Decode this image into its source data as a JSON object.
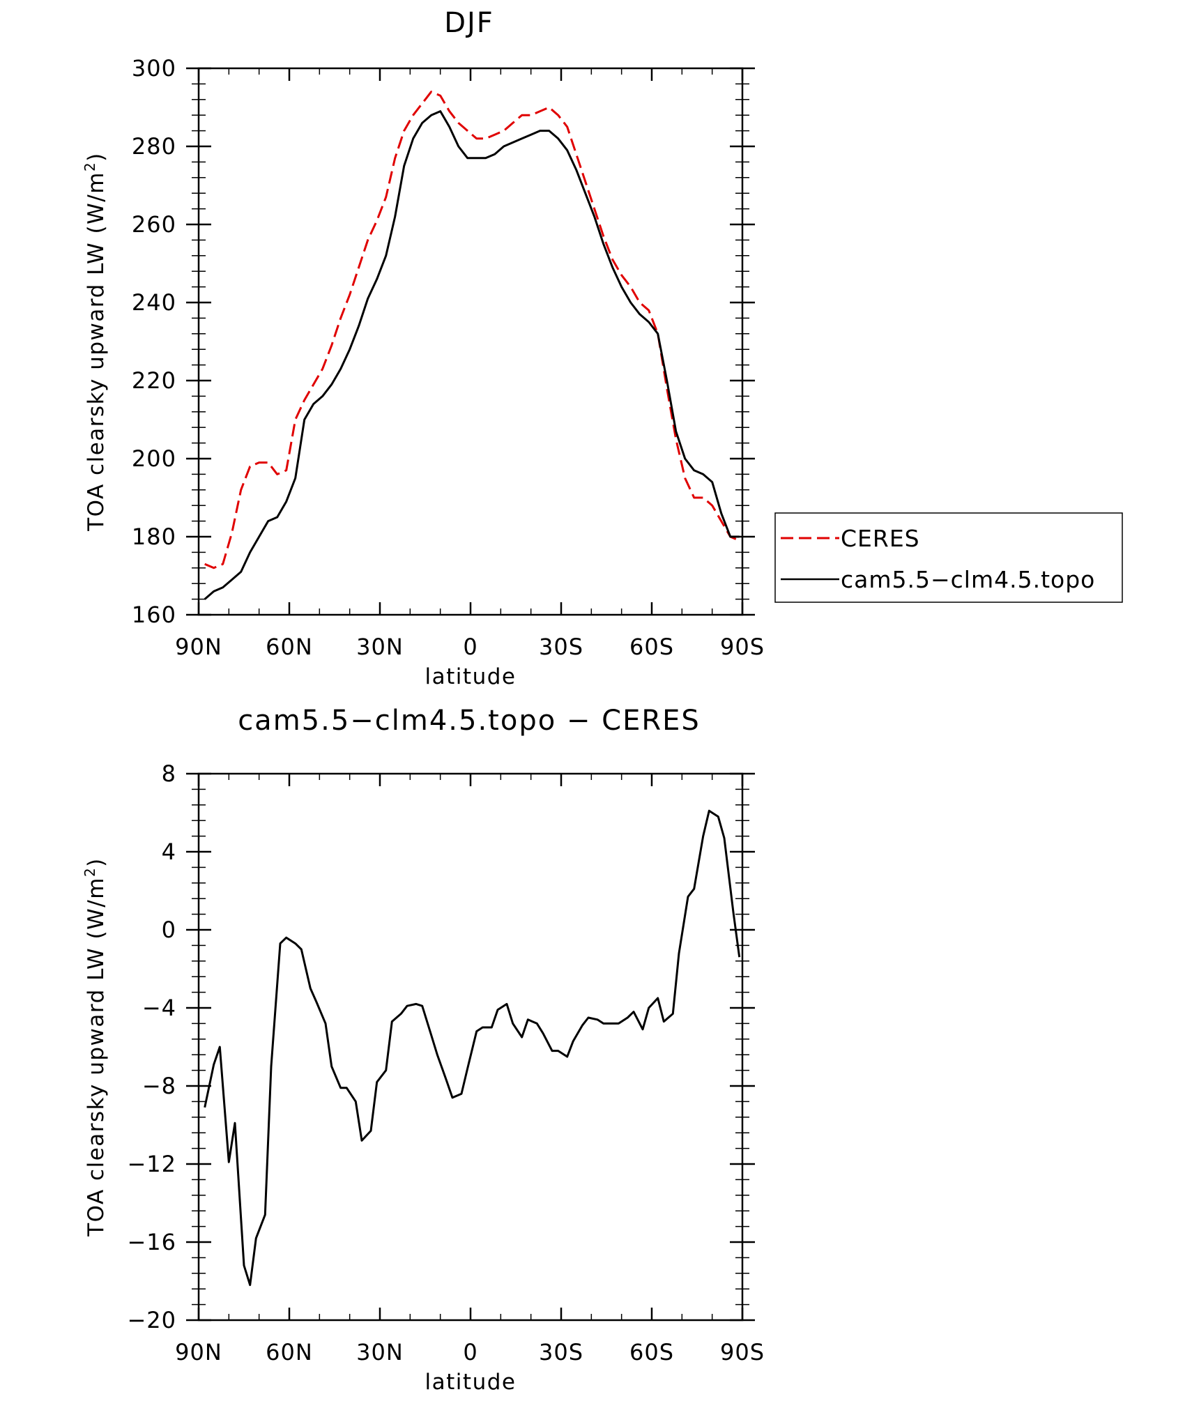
{
  "chart_data": [
    {
      "type": "line",
      "title": "DJF",
      "xlabel": "latitude",
      "ylabel": "TOA clearsky upward LW (W/m²)",
      "ylabel_text": "TOA clearsky upward LW (W/m",
      "ylabel_sup": "2",
      "ylabel_end": ")",
      "xlim": [
        90,
        -90
      ],
      "ylim": [
        160,
        300
      ],
      "x_ticks": [
        90,
        60,
        30,
        0,
        -30,
        -60,
        -90
      ],
      "x_tick_labels": [
        "90N",
        "60N",
        "30N",
        "0",
        "30S",
        "60S",
        "90S"
      ],
      "y_ticks": [
        160,
        180,
        200,
        220,
        240,
        260,
        280,
        300
      ],
      "y_tick_labels": [
        "160",
        "180",
        "200",
        "220",
        "240",
        "260",
        "280",
        "300"
      ],
      "legend_position": "right",
      "series": [
        {
          "name": "CERES",
          "color": "#e00000",
          "style": "dashed",
          "x": [
            88,
            85,
            82,
            79,
            76,
            73,
            70,
            67,
            64,
            61,
            58,
            55,
            52,
            49,
            46,
            43,
            40,
            37,
            34,
            31,
            28,
            25,
            22,
            19,
            16,
            13,
            10,
            7,
            4,
            1,
            -2,
            -5,
            -8,
            -11,
            -14,
            -17,
            -20,
            -23,
            -26,
            -29,
            -32,
            -35,
            -38,
            -41,
            -44,
            -47,
            -50,
            -53,
            -56,
            -59,
            -62,
            -65,
            -68,
            -71,
            -74,
            -77,
            -80,
            -83,
            -86,
            -89
          ],
          "y": [
            173,
            172,
            173,
            181,
            192,
            198,
            199,
            199,
            196,
            197,
            210,
            215,
            219,
            223,
            229,
            236,
            242,
            249,
            256,
            261,
            267,
            277,
            284,
            288,
            291,
            294,
            293,
            289,
            286,
            284,
            282,
            282,
            283,
            284,
            286,
            288,
            288,
            289,
            290,
            288,
            285,
            278,
            271,
            264,
            257,
            251,
            247,
            244,
            240,
            238,
            232,
            218,
            205,
            195,
            190,
            190,
            188,
            184,
            180,
            179
          ]
        },
        {
          "name": "cam5.5−clm4.5.topo",
          "color": "#000000",
          "style": "solid",
          "x": [
            88,
            85,
            82,
            79,
            76,
            73,
            70,
            67,
            64,
            61,
            58,
            55,
            52,
            49,
            46,
            43,
            40,
            37,
            34,
            31,
            28,
            25,
            22,
            19,
            16,
            13,
            10,
            7,
            4,
            1,
            -2,
            -5,
            -8,
            -11,
            -14,
            -17,
            -20,
            -23,
            -26,
            -29,
            -32,
            -35,
            -38,
            -41,
            -44,
            -47,
            -50,
            -53,
            -56,
            -59,
            -62,
            -65,
            -68,
            -71,
            -74,
            -77,
            -80,
            -83,
            -86,
            -89
          ],
          "y": [
            164,
            166,
            167,
            169,
            171,
            176,
            180,
            184,
            185,
            189,
            195,
            210,
            214,
            216,
            219,
            223,
            228,
            234,
            241,
            246,
            252,
            262,
            275,
            282,
            286,
            288,
            289,
            285,
            280,
            277,
            277,
            277,
            278,
            280,
            281,
            282,
            283,
            284,
            284,
            282,
            279,
            274,
            268,
            262,
            255,
            249,
            244,
            240,
            237,
            235,
            232,
            220,
            207,
            200,
            197,
            196,
            194,
            186,
            180,
            180
          ]
        }
      ]
    },
    {
      "type": "line",
      "title": "cam5.5−clm4.5.topo − CERES",
      "xlabel": "latitude",
      "ylabel": "TOA clearsky upward LW (W/m²)",
      "ylabel_text": "TOA clearsky upward LW (W/m",
      "ylabel_sup": "2",
      "ylabel_end": ")",
      "xlim": [
        90,
        -90
      ],
      "ylim": [
        -20,
        8
      ],
      "x_ticks": [
        90,
        60,
        30,
        0,
        -30,
        -60,
        -90
      ],
      "x_tick_labels": [
        "90N",
        "60N",
        "30N",
        "0",
        "30S",
        "60S",
        "90S"
      ],
      "y_ticks": [
        -20,
        -16,
        -12,
        -8,
        -4,
        0,
        4,
        8
      ],
      "y_tick_labels": [
        "−20",
        "−16",
        "−12",
        "−8",
        "−4",
        "0",
        "4",
        "8"
      ],
      "series": [
        {
          "color": "#000000",
          "style": "solid",
          "x": [
            88,
            85,
            83,
            80,
            78,
            75,
            73,
            71,
            68,
            66,
            63,
            61,
            58,
            56,
            53,
            51,
            48,
            46,
            43,
            41,
            38,
            36,
            33,
            31,
            28,
            26,
            23,
            21,
            18,
            16,
            13,
            11,
            8,
            6,
            3,
            1,
            -2,
            -4,
            -7,
            -9,
            -12,
            -14,
            -17,
            -19,
            -22,
            -24,
            -27,
            -29,
            -32,
            -34,
            -37,
            -39,
            -42,
            -44,
            -47,
            -49,
            -52,
            -54,
            -57,
            -59,
            -62,
            -64,
            -67,
            -69,
            -72,
            -74,
            -77,
            -79,
            -82,
            -84,
            -87,
            -89
          ],
          "y": [
            -9.1,
            -6.9,
            -6.0,
            -11.9,
            -9.9,
            -17.2,
            -18.2,
            -15.8,
            -14.6,
            -7.0,
            -0.7,
            -0.4,
            -0.7,
            -1.0,
            -3.0,
            -3.7,
            -4.8,
            -7.0,
            -8.1,
            -8.1,
            -8.8,
            -10.8,
            -10.3,
            -7.8,
            -7.2,
            -4.7,
            -4.3,
            -3.9,
            -3.8,
            -3.9,
            -5.4,
            -6.4,
            -7.7,
            -8.6,
            -8.4,
            -7.1,
            -5.2,
            -5.0,
            -5.0,
            -4.1,
            -3.8,
            -4.8,
            -5.5,
            -4.6,
            -4.8,
            -5.3,
            -6.2,
            -6.2,
            -6.5,
            -5.7,
            -4.9,
            -4.5,
            -4.6,
            -4.8,
            -4.8,
            -4.8,
            -4.5,
            -4.2,
            -5.1,
            -4.0,
            -3.5,
            -4.7,
            -4.3,
            -1.2,
            1.7,
            2.1,
            4.8,
            6.1,
            5.8,
            4.7,
            0.9,
            -1.4
          ]
        }
      ]
    }
  ]
}
